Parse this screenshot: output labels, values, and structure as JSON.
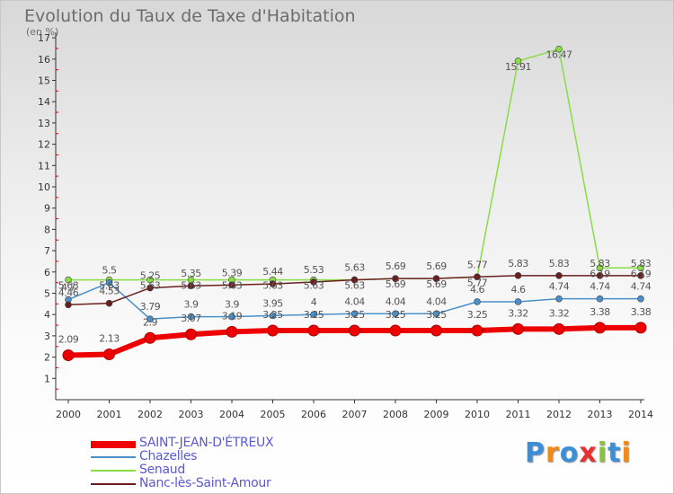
{
  "title": "Evolution du Taux de Taxe d'Habitation",
  "unit_label": "(en %)",
  "logo": {
    "text": "Proxiti",
    "letter_colors": [
      "#3a8fd8",
      "#f08a1c",
      "#3a8fd8",
      "#e83030",
      "#8ac43c",
      "#3a8fd8",
      "#f08a1c"
    ]
  },
  "chart_data": {
    "type": "line",
    "title": "Evolution du Taux de Taxe d'Habitation",
    "ylabel": "(en %)",
    "xlabel": "",
    "ylim": [
      0,
      17
    ],
    "grid": false,
    "legend_position": "bottom-left",
    "x": [
      "2000",
      "2001",
      "2002",
      "2003",
      "2004",
      "2005",
      "2006",
      "2007",
      "2008",
      "2009",
      "2010",
      "2011",
      "2012",
      "2013",
      "2014"
    ],
    "y_ticks": [
      "1",
      "2",
      "3",
      "4",
      "5",
      "6",
      "7",
      "8",
      "9",
      "10",
      "11",
      "12",
      "13",
      "14",
      "15",
      "16",
      "17"
    ],
    "series": [
      {
        "name": "SAINT-JEAN-D'ÉTREUX",
        "color": "#ee0000",
        "values": [
          2.09,
          2.13,
          2.9,
          3.07,
          3.19,
          3.25,
          3.25,
          3.25,
          3.25,
          3.25,
          3.25,
          3.32,
          3.32,
          3.38,
          3.38
        ],
        "labels": [
          "2.09",
          "2.13",
          "2.9",
          "3.07",
          "3.19",
          "3.25",
          "3.25",
          "3.25",
          "3.25",
          "3.25",
          "3.25",
          "3.32",
          "3.32",
          "3.38",
          "3.38"
        ]
      },
      {
        "name": "Chazelles",
        "color": "#4a90c8",
        "values": [
          4.7,
          5.5,
          3.79,
          3.9,
          3.9,
          3.95,
          4.0,
          4.04,
          4.04,
          4.04,
          4.6,
          4.6,
          4.74,
          4.74,
          4.74
        ],
        "labels": [
          "4.7",
          "5.5",
          "3.79",
          "3.9",
          "3.9",
          "3.95",
          "4",
          "4.04",
          "4.04",
          "4.04",
          "4.6",
          "4.6",
          "4.74",
          "4.74",
          "4.74"
        ]
      },
      {
        "name": "Senaud",
        "color": "#88dd44",
        "values": [
          5.63,
          5.63,
          5.63,
          5.63,
          5.63,
          5.63,
          5.63,
          5.63,
          5.69,
          5.69,
          5.77,
          15.91,
          16.47,
          6.19,
          6.19
        ],
        "labels": [
          "5.63",
          "5.63",
          "5.63",
          "5.63",
          "5.63",
          "5.63",
          "5.63",
          "5.63",
          "5.69",
          "5.69",
          "5.77",
          "15.91",
          "16.47",
          "6.19",
          "6.19"
        ]
      },
      {
        "name": "Nanc-lès-Saint-Amour",
        "color": "#6a1f1f",
        "values": [
          4.46,
          4.53,
          5.25,
          5.35,
          5.39,
          5.44,
          5.53,
          5.63,
          5.69,
          5.69,
          5.77,
          5.83,
          5.83,
          5.83,
          5.83
        ],
        "labels": [
          "4.46",
          "4.53",
          "5.25",
          "5.35",
          "5.39",
          "5.44",
          "5.53",
          "5.63",
          "5.69",
          "5.69",
          "5.77",
          "5.83",
          "5.83",
          "5.83",
          "5.83"
        ]
      }
    ]
  }
}
